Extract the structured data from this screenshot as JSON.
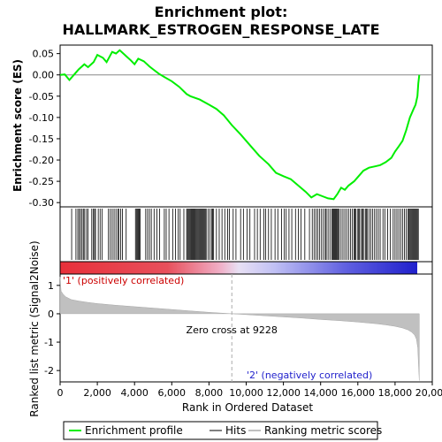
{
  "chart_data": {
    "type": "line",
    "title_line1": "Enrichment plot:",
    "title_line2": "HALLMARK_ESTROGEN_RESPONSE_LATE",
    "ylabel_top": "Enrichment score (ES)",
    "ylabel_bottom": "Ranked list metric (Signal2Noise)",
    "xlabel": "Rank in Ordered Dataset",
    "xlim": [
      0,
      20000
    ],
    "es_ylim": [
      -0.31,
      0.07
    ],
    "metric_ylim": [
      -2.4,
      1.4
    ],
    "x_ticks": [
      0,
      2000,
      4000,
      6000,
      8000,
      10000,
      12000,
      14000,
      16000,
      18000,
      20000
    ],
    "x_tick_labels": [
      "0",
      "2,000",
      "4,000",
      "6,000",
      "8,000",
      "10,000",
      "12,000",
      "14,000",
      "16,000",
      "18,000",
      "20,000"
    ],
    "es_ticks": [
      0.05,
      0.0,
      -0.05,
      -0.1,
      -0.15,
      -0.2,
      -0.25,
      -0.3
    ],
    "es_tick_labels": [
      "0.05",
      "0.00",
      "-0.05",
      "-0.10",
      "-0.15",
      "-0.20",
      "-0.25",
      "-0.30"
    ],
    "metric_ticks": [
      1,
      0,
      -1,
      -2
    ],
    "metric_tick_labels": [
      "1",
      "0",
      "-1",
      "-2"
    ],
    "zero_cross_label": "Zero cross at 9228",
    "zero_cross_rank": 9228,
    "total_ranks": 19300,
    "pos_label": "'1' (positively correlated)",
    "neg_label": "'2' (negatively correlated)",
    "series": [
      {
        "name": "Enrichment profile",
        "color": "#00ee00",
        "x": [
          0,
          250,
          500,
          800,
          1000,
          1300,
          1500,
          1800,
          2000,
          2300,
          2500,
          2800,
          3000,
          3200,
          3400,
          3600,
          3800,
          4000,
          4200,
          4500,
          4800,
          5000,
          5300,
          5600,
          6000,
          6400,
          6800,
          7000,
          7500,
          8000,
          8400,
          8800,
          9228,
          9700,
          10200,
          10700,
          11200,
          11600,
          12000,
          12400,
          12800,
          13200,
          13500,
          13800,
          14100,
          14400,
          14700,
          14900,
          15100,
          15300,
          15500,
          15800,
          16000,
          16300,
          16600,
          16900,
          17200,
          17500,
          17800,
          18000,
          18200,
          18400,
          18600,
          18800,
          19000,
          19100,
          19200,
          19250,
          19300
        ],
        "values": [
          0.0,
          0.001,
          -0.012,
          0.003,
          0.013,
          0.025,
          0.018,
          0.03,
          0.047,
          0.04,
          0.03,
          0.054,
          0.05,
          0.058,
          0.05,
          0.042,
          0.034,
          0.025,
          0.038,
          0.032,
          0.02,
          0.013,
          0.003,
          -0.005,
          -0.015,
          -0.028,
          -0.045,
          -0.05,
          -0.058,
          -0.07,
          -0.08,
          -0.095,
          -0.118,
          -0.14,
          -0.165,
          -0.19,
          -0.21,
          -0.23,
          -0.238,
          -0.245,
          -0.26,
          -0.275,
          -0.288,
          -0.28,
          -0.285,
          -0.29,
          -0.292,
          -0.28,
          -0.265,
          -0.27,
          -0.26,
          -0.25,
          -0.24,
          -0.225,
          -0.218,
          -0.215,
          -0.212,
          -0.205,
          -0.195,
          -0.18,
          -0.168,
          -0.155,
          -0.13,
          -0.1,
          -0.08,
          -0.07,
          -0.05,
          -0.02,
          0.0
        ]
      }
    ],
    "hits_legend": "Hits",
    "metric_legend": "Ranking metric scores",
    "hit_ranks": [
      620,
      850,
      950,
      1030,
      1100,
      1180,
      1250,
      1320,
      1420,
      1500,
      1700,
      1780,
      1850,
      1900,
      2050,
      2150,
      2250,
      2600,
      2700,
      2800,
      2900,
      3000,
      3100,
      3150,
      3250,
      3350,
      3550,
      4050,
      4100,
      4150,
      4200,
      4250,
      4300,
      4600,
      4700,
      4800,
      4900,
      5050,
      5200,
      5350,
      5600,
      5700,
      5850,
      6050,
      6200,
      6350,
      6450,
      6650,
      6800,
      6850,
      6900,
      6950,
      7000,
      7050,
      7100,
      7150,
      7200,
      7250,
      7300,
      7350,
      7400,
      7450,
      7500,
      7550,
      7600,
      7650,
      7700,
      7750,
      7800,
      7850,
      7950,
      8050,
      8150,
      8200,
      8250,
      8400,
      8550,
      8700,
      8850,
      9000,
      9100,
      9300,
      9450,
      9700,
      9850,
      10050,
      10200,
      10450,
      10600,
      10750,
      10950,
      11050,
      11200,
      11350,
      11550,
      11700,
      11900,
      12050,
      12150,
      12300,
      12450,
      12650,
      12800,
      12950,
      13150,
      13400,
      13550,
      13650,
      13750,
      13850,
      13950,
      14050,
      14150,
      14250,
      14300,
      14400,
      14500,
      14600,
      14650,
      14700,
      14750,
      14800,
      14850,
      14900,
      14950,
      15000,
      15100,
      15200,
      15300,
      15400,
      15500,
      15600,
      15700,
      15800,
      15850,
      15900,
      16000,
      16050,
      16100,
      16200,
      16250,
      16300,
      16400,
      16450,
      16500,
      16600,
      16700,
      16800,
      16900,
      17000,
      17100,
      17200,
      17350,
      17450,
      17600,
      17750,
      17900,
      18000,
      18100,
      18200,
      18300,
      18400,
      18500,
      18600,
      18700,
      18750,
      18800,
      18850,
      18900,
      18950,
      19000,
      19050,
      19100,
      19150,
      19200,
      19250
    ],
    "metric_curve": {
      "x": [
        0,
        50,
        150,
        300,
        600,
        1000,
        1500,
        2000,
        3000,
        4000,
        5000,
        6000,
        7000,
        8000,
        9228,
        10000,
        11000,
        12000,
        13000,
        14000,
        15000,
        16000,
        17000,
        17500,
        18000,
        18400,
        18700,
        18900,
        19050,
        19150,
        19220,
        19260,
        19300
      ],
      "values": [
        1.3,
        0.8,
        0.7,
        0.6,
        0.5,
        0.45,
        0.4,
        0.36,
        0.3,
        0.25,
        0.2,
        0.15,
        0.1,
        0.05,
        0.0,
        -0.03,
        -0.07,
        -0.11,
        -0.15,
        -0.2,
        -0.24,
        -0.29,
        -0.35,
        -0.39,
        -0.44,
        -0.5,
        -0.57,
        -0.65,
        -0.75,
        -0.9,
        -1.2,
        -1.8,
        -2.35
      ]
    },
    "bar_colors": {
      "pos": "#e8303a",
      "mid_pos": "#f0b8cc",
      "mid_neg": "#c8c8f4",
      "neg": "#2a2ad0"
    }
  }
}
